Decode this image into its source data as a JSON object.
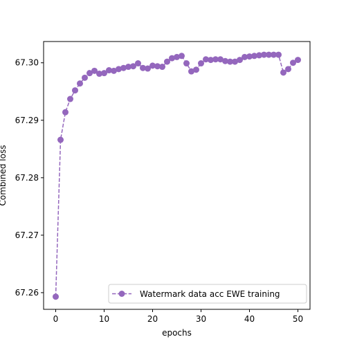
{
  "chart_data": {
    "type": "line",
    "xlabel": "epochs",
    "ylabel": "Combined loss",
    "xlim": [
      -2.5,
      52.5
    ],
    "ylim": [
      67.2571,
      67.3037
    ],
    "xticks": [
      0,
      10,
      20,
      30,
      40,
      50
    ],
    "xtick_labels": [
      "0",
      "10",
      "20",
      "30",
      "40",
      "50"
    ],
    "yticks": [
      67.26,
      67.27,
      67.28,
      67.29,
      67.3
    ],
    "ytick_labels": [
      "67.26",
      "67.27",
      "67.28",
      "67.29",
      "67.30"
    ],
    "grid": false,
    "legend_position": "lower-right",
    "series": [
      {
        "name": "Watermark data acc EWE training",
        "color": "#9467bd",
        "linestyle": "dashed",
        "marker": "circle",
        "x": [
          0,
          1,
          2,
          3,
          4,
          5,
          6,
          7,
          8,
          9,
          10,
          11,
          12,
          13,
          14,
          15,
          16,
          17,
          18,
          19,
          20,
          21,
          22,
          23,
          24,
          25,
          26,
          27,
          28,
          29,
          30,
          31,
          32,
          33,
          34,
          35,
          36,
          37,
          38,
          39,
          40,
          41,
          42,
          43,
          44,
          45,
          46,
          47,
          48,
          49,
          50
        ],
        "y": [
          67.2593,
          67.2866,
          67.2914,
          67.2937,
          67.2952,
          67.2964,
          67.2974,
          67.2982,
          67.2986,
          67.2981,
          67.2982,
          67.2987,
          67.2986,
          67.2989,
          67.2991,
          67.2993,
          67.2994,
          67.2999,
          67.2991,
          67.299,
          67.2995,
          67.2994,
          67.2993,
          67.3002,
          67.3008,
          67.301,
          67.3012,
          67.2999,
          67.2985,
          67.2988,
          67.2999,
          67.3006,
          67.3005,
          67.3006,
          67.3006,
          67.3003,
          67.3002,
          67.3002,
          67.3005,
          67.301,
          67.3011,
          67.3012,
          67.3013,
          67.3014,
          67.3014,
          67.3014,
          67.3014,
          67.2983,
          67.2989,
          67.3,
          67.3005
        ]
      }
    ]
  }
}
